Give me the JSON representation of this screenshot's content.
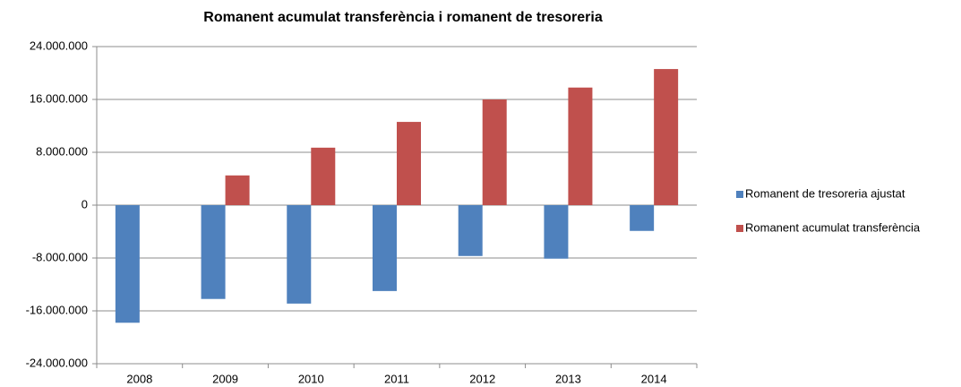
{
  "chart_data": {
    "type": "bar",
    "title": "Romanent acumulat transferència i romanent de tresoreria",
    "categories": [
      "2008",
      "2009",
      "2010",
      "2011",
      "2012",
      "2013",
      "2014"
    ],
    "series": [
      {
        "name": "Romanent de tresoreria ajustat",
        "color": "#4f81bd",
        "values": [
          -17800000,
          -14200000,
          -14900000,
          -13000000,
          -7700000,
          -8100000,
          -3900000
        ]
      },
      {
        "name": "Romanent acumulat transferència",
        "color": "#c0504d",
        "values": [
          null,
          4500000,
          8700000,
          12600000,
          16000000,
          17800000,
          20600000
        ]
      }
    ],
    "ylim": [
      -24000000,
      24000000
    ],
    "yticks": [
      {
        "value": -24000000,
        "label": "-24.000.000"
      },
      {
        "value": -16000000,
        "label": "-16.000.000"
      },
      {
        "value": -8000000,
        "label": "-8.000.000"
      },
      0,
      {
        "value": 8000000,
        "label": "8.000.000"
      },
      {
        "value": 16000000,
        "label": "16.000.000"
      },
      {
        "value": 24000000,
        "label": "24.000.000"
      }
    ],
    "grid": true,
    "legend": "right"
  }
}
